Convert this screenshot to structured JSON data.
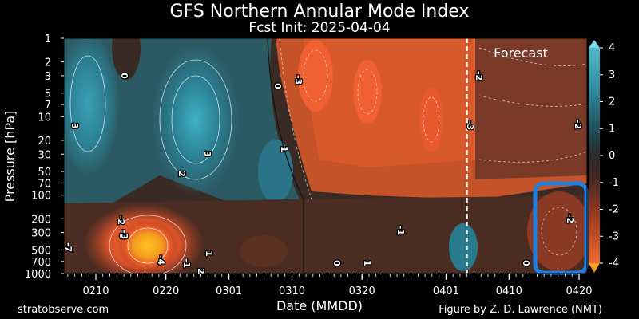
{
  "chart_data": {
    "type": "heatmap",
    "title": "GFS Northern Annular Mode Index",
    "subtitle": "Fcst Init: 2025-04-04",
    "xlabel": "Date (MMDD)",
    "ylabel": "Pressure [hPa]",
    "x_ticks": [
      "0210",
      "0220",
      "0301",
      "0310",
      "0320",
      "0401",
      "0410",
      "0420"
    ],
    "y_ticks": [
      1,
      2,
      3,
      5,
      7,
      10,
      20,
      30,
      50,
      70,
      100,
      200,
      300,
      500,
      700,
      1000
    ],
    "y_scale": "log",
    "ylim": [
      1000,
      1
    ],
    "colorbar": {
      "ticks": [
        4,
        3,
        2,
        1,
        0,
        -1,
        -2,
        -3,
        -4
      ],
      "range": [
        -4,
        4
      ]
    },
    "forecast_label": "Forecast",
    "forecast_divider_date": "0404",
    "contour_labels": [
      "0",
      "-3",
      "-2",
      "3",
      "3",
      "2",
      "0",
      "1",
      "-3",
      "-3",
      "-1",
      "0",
      "1",
      "-2",
      "-3",
      "-4",
      "1",
      "2",
      "-2",
      "0",
      "-2",
      "-7",
      "-1"
    ],
    "colors": {
      "positive": "#2e8aa0",
      "negative": "#e0552a",
      "extreme_negative": "#f5c020",
      "highlight_box": "#1e7fe0",
      "forecast_line": "#ffffff"
    }
  },
  "footer": {
    "left": "stratobserve.com",
    "right": "Figure by Z. D. Lawrence (NMT)"
  }
}
